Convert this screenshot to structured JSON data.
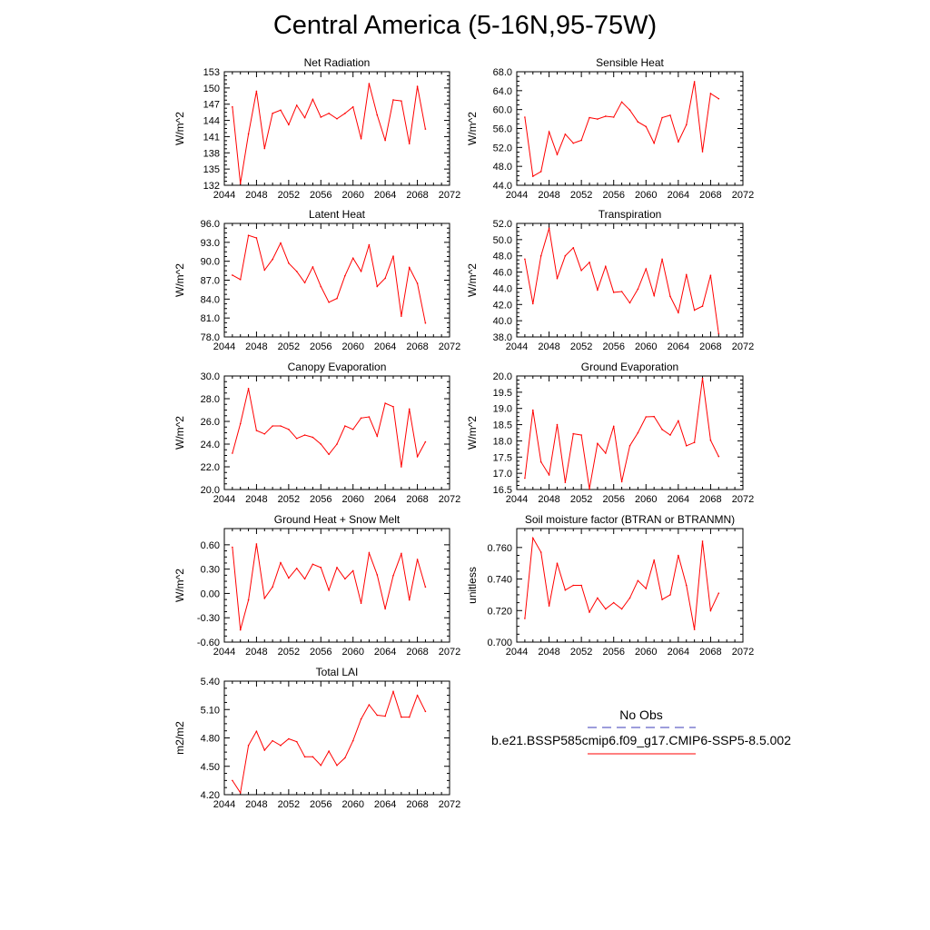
{
  "page": {
    "title": "Central America (5-16N,95-75W)"
  },
  "legend": {
    "obs_label": "No Obs",
    "obs_color": "#3b3bb8",
    "model_label": "b.e21.BSSP585cmip6.f09_g17.CMIP6-SSP5-8.5.002",
    "model_color": "#ff0000"
  },
  "chart_data": [
    {
      "type": "line",
      "title": "Net Radiation",
      "ylabel": "W/m^2",
      "xlim": [
        2044,
        2072
      ],
      "ylim": [
        132,
        153
      ],
      "xticks": [
        "2044",
        "2048",
        "2052",
        "2056",
        "2060",
        "2064",
        "2068",
        "2072"
      ],
      "yticks": [
        "132",
        "135",
        "138",
        "141",
        "144",
        "147",
        "150",
        "153"
      ],
      "x": [
        2045,
        2046,
        2047,
        2048,
        2049,
        2050,
        2051,
        2052,
        2053,
        2054,
        2055,
        2056,
        2057,
        2058,
        2059,
        2060,
        2061,
        2062,
        2063,
        2064,
        2065,
        2066,
        2067,
        2068,
        2069
      ],
      "y": [
        146.5,
        132.3,
        141.5,
        149.4,
        138.8,
        145.3,
        145.9,
        143.2,
        146.8,
        144.5,
        147.9,
        144.6,
        145.3,
        144.3,
        145.3,
        146.5,
        140.6,
        150.8,
        145.0,
        140.3,
        147.8,
        147.6,
        139.7,
        150.3,
        142.4
      ],
      "color": "#ff0000"
    },
    {
      "type": "line",
      "title": "Sensible Heat",
      "ylabel": "W/m^2",
      "xlim": [
        2044,
        2072
      ],
      "ylim": [
        44,
        68
      ],
      "xticks": [
        "2044",
        "2048",
        "2052",
        "2056",
        "2060",
        "2064",
        "2068",
        "2072"
      ],
      "yticks": [
        "44.0",
        "48.0",
        "52.0",
        "56.0",
        "60.0",
        "64.0",
        "68.0"
      ],
      "x": [
        2045,
        2046,
        2047,
        2048,
        2049,
        2050,
        2051,
        2052,
        2053,
        2054,
        2055,
        2056,
        2057,
        2058,
        2059,
        2060,
        2061,
        2062,
        2063,
        2064,
        2065,
        2066,
        2067,
        2068,
        2069
      ],
      "y": [
        58.4,
        45.9,
        46.9,
        55.3,
        50.5,
        54.8,
        52.9,
        53.5,
        58.3,
        58.0,
        58.6,
        58.4,
        61.6,
        59.9,
        57.4,
        56.4,
        52.9,
        58.3,
        58.8,
        53.2,
        56.8,
        65.9,
        51.1,
        63.4,
        62.3
      ],
      "color": "#ff0000"
    },
    {
      "type": "line",
      "title": "Latent Heat",
      "ylabel": "W/m^2",
      "xlim": [
        2044,
        2072
      ],
      "ylim": [
        78,
        96
      ],
      "xticks": [
        "2044",
        "2048",
        "2052",
        "2056",
        "2060",
        "2064",
        "2068",
        "2072"
      ],
      "yticks": [
        "78.0",
        "81.0",
        "84.0",
        "87.0",
        "90.0",
        "93.0",
        "96.0"
      ],
      "x": [
        2045,
        2046,
        2047,
        2048,
        2049,
        2050,
        2051,
        2052,
        2053,
        2054,
        2055,
        2056,
        2057,
        2058,
        2059,
        2060,
        2061,
        2062,
        2063,
        2064,
        2065,
        2066,
        2067,
        2068,
        2069
      ],
      "y": [
        87.8,
        87.1,
        94.1,
        93.7,
        88.6,
        90.3,
        92.9,
        89.7,
        88.4,
        86.6,
        89.1,
        86.0,
        83.5,
        84.1,
        87.7,
        90.5,
        88.4,
        92.6,
        86.0,
        87.3,
        90.8,
        81.3,
        89.0,
        86.5,
        80.2
      ],
      "color": "#ff0000"
    },
    {
      "type": "line",
      "title": "Transpiration",
      "ylabel": "W/m^2",
      "xlim": [
        2044,
        2072
      ],
      "ylim": [
        38,
        52
      ],
      "xticks": [
        "2044",
        "2048",
        "2052",
        "2056",
        "2060",
        "2064",
        "2068",
        "2072"
      ],
      "yticks": [
        "38.0",
        "40.0",
        "42.0",
        "44.0",
        "46.0",
        "48.0",
        "50.0",
        "52.0"
      ],
      "x": [
        2045,
        2046,
        2047,
        2048,
        2049,
        2050,
        2051,
        2052,
        2053,
        2054,
        2055,
        2056,
        2057,
        2058,
        2059,
        2060,
        2061,
        2062,
        2063,
        2064,
        2065,
        2066,
        2067,
        2068,
        2069
      ],
      "y": [
        47.6,
        42.1,
        48.0,
        51.4,
        45.2,
        48.0,
        49.0,
        46.2,
        47.2,
        43.8,
        46.7,
        43.5,
        43.6,
        42.2,
        43.9,
        46.4,
        43.1,
        47.6,
        43.0,
        41.0,
        45.7,
        41.3,
        41.8,
        45.6,
        38.4
      ],
      "color": "#ff0000"
    },
    {
      "type": "line",
      "title": "Canopy Evaporation",
      "ylabel": "W/m^2",
      "xlim": [
        2044,
        2072
      ],
      "ylim": [
        20,
        30
      ],
      "xticks": [
        "2044",
        "2048",
        "2052",
        "2056",
        "2060",
        "2064",
        "2068",
        "2072"
      ],
      "yticks": [
        "20.0",
        "22.0",
        "24.0",
        "26.0",
        "28.0",
        "30.0"
      ],
      "x": [
        2045,
        2046,
        2047,
        2048,
        2049,
        2050,
        2051,
        2052,
        2053,
        2054,
        2055,
        2056,
        2057,
        2058,
        2059,
        2060,
        2061,
        2062,
        2063,
        2064,
        2065,
        2066,
        2067,
        2068,
        2069
      ],
      "y": [
        23.2,
        25.8,
        28.9,
        25.2,
        24.9,
        25.6,
        25.6,
        25.3,
        24.5,
        24.8,
        24.6,
        24.0,
        23.1,
        24.0,
        25.6,
        25.3,
        26.3,
        26.4,
        24.7,
        27.6,
        27.3,
        22.0,
        27.1,
        22.9,
        24.2
      ],
      "color": "#ff0000"
    },
    {
      "type": "line",
      "title": "Ground Evaporation",
      "ylabel": "W/m^2",
      "xlim": [
        2044,
        2072
      ],
      "ylim": [
        16.5,
        20
      ],
      "xticks": [
        "2044",
        "2048",
        "2052",
        "2056",
        "2060",
        "2064",
        "2068",
        "2072"
      ],
      "yticks": [
        "16.5",
        "17.0",
        "17.5",
        "18.0",
        "18.5",
        "19.0",
        "19.5",
        "20.0"
      ],
      "x": [
        2045,
        2046,
        2047,
        2048,
        2049,
        2050,
        2051,
        2052,
        2053,
        2054,
        2055,
        2056,
        2057,
        2058,
        2059,
        2060,
        2061,
        2062,
        2063,
        2064,
        2065,
        2066,
        2067,
        2068,
        2069
      ],
      "y": [
        16.85,
        18.95,
        17.35,
        16.95,
        18.5,
        16.72,
        18.22,
        18.18,
        16.52,
        17.92,
        17.62,
        18.45,
        16.74,
        17.85,
        18.25,
        18.74,
        18.75,
        18.35,
        18.18,
        18.62,
        17.85,
        17.95,
        19.93,
        18.02,
        17.52
      ],
      "color": "#ff0000"
    },
    {
      "type": "line",
      "title": "Ground Heat + Snow Melt",
      "ylabel": "W/m^2",
      "xlim": [
        2044,
        2072
      ],
      "ylim": [
        -0.6,
        0.8
      ],
      "xticks": [
        "2044",
        "2048",
        "2052",
        "2056",
        "2060",
        "2064",
        "2068",
        "2072"
      ],
      "yticks": [
        "-0.60",
        "-0.30",
        "0.00",
        "0.30",
        "0.60"
      ],
      "ytick_values": [
        -0.6,
        -0.3,
        0.0,
        0.3,
        0.6
      ],
      "x": [
        2045,
        2046,
        2047,
        2048,
        2049,
        2050,
        2051,
        2052,
        2053,
        2054,
        2055,
        2056,
        2057,
        2058,
        2059,
        2060,
        2061,
        2062,
        2063,
        2064,
        2065,
        2066,
        2067,
        2068,
        2069
      ],
      "y": [
        0.57,
        -0.45,
        -0.08,
        0.61,
        -0.06,
        0.08,
        0.38,
        0.19,
        0.31,
        0.18,
        0.36,
        0.32,
        0.04,
        0.32,
        0.18,
        0.28,
        -0.12,
        0.5,
        0.23,
        -0.19,
        0.22,
        0.49,
        -0.08,
        0.42,
        0.08
      ],
      "color": "#ff0000"
    },
    {
      "type": "line",
      "title": "Soil moisture factor (BTRAN or BTRANMN)",
      "ylabel": "unitless",
      "xlim": [
        2044,
        2072
      ],
      "ylim": [
        0.7,
        0.772
      ],
      "xticks": [
        "2044",
        "2048",
        "2052",
        "2056",
        "2060",
        "2064",
        "2068",
        "2072"
      ],
      "yticks": [
        "0.700",
        "0.720",
        "0.740",
        "0.760"
      ],
      "ytick_values": [
        0.7,
        0.72,
        0.74,
        0.76
      ],
      "x": [
        2045,
        2046,
        2047,
        2048,
        2049,
        2050,
        2051,
        2052,
        2053,
        2054,
        2055,
        2056,
        2057,
        2058,
        2059,
        2060,
        2061,
        2062,
        2063,
        2064,
        2065,
        2066,
        2067,
        2068,
        2069
      ],
      "y": [
        0.715,
        0.766,
        0.757,
        0.723,
        0.75,
        0.733,
        0.736,
        0.736,
        0.719,
        0.728,
        0.721,
        0.725,
        0.721,
        0.728,
        0.739,
        0.734,
        0.752,
        0.727,
        0.73,
        0.755,
        0.736,
        0.708,
        0.764,
        0.72,
        0.731
      ],
      "color": "#ff0000"
    },
    {
      "type": "line",
      "title": "Total LAI",
      "ylabel": "m2/m2",
      "xlim": [
        2044,
        2072
      ],
      "ylim": [
        4.2,
        5.4
      ],
      "xticks": [
        "2044",
        "2048",
        "2052",
        "2056",
        "2060",
        "2064",
        "2068",
        "2072"
      ],
      "yticks": [
        "4.20",
        "4.50",
        "4.80",
        "5.10",
        "5.40"
      ],
      "x": [
        2045,
        2046,
        2047,
        2048,
        2049,
        2050,
        2051,
        2052,
        2053,
        2054,
        2055,
        2056,
        2057,
        2058,
        2059,
        2060,
        2061,
        2062,
        2063,
        2064,
        2065,
        2066,
        2067,
        2068,
        2069
      ],
      "y": [
        4.35,
        4.22,
        4.72,
        4.87,
        4.67,
        4.77,
        4.72,
        4.79,
        4.76,
        4.6,
        4.6,
        4.51,
        4.66,
        4.51,
        4.59,
        4.77,
        5.0,
        5.15,
        5.04,
        5.03,
        5.29,
        5.02,
        5.02,
        5.25,
        5.08
      ],
      "color": "#ff0000"
    }
  ]
}
